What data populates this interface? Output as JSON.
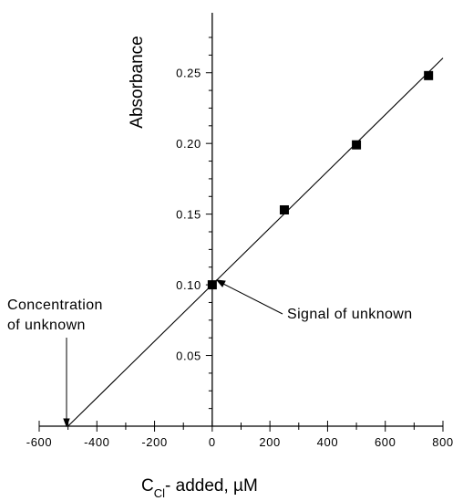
{
  "chart_data": {
    "type": "scatter",
    "x_ticks": [
      -600,
      -400,
      -200,
      0,
      200,
      400,
      600,
      800
    ],
    "y_ticks": [
      0.05,
      0.1,
      0.15,
      0.2,
      0.25
    ],
    "xlim": [
      -600,
      800
    ],
    "ylim": [
      0,
      0.275
    ],
    "series": [
      {
        "values_x": [
          0,
          250,
          500,
          750
        ],
        "values_y": [
          0.1,
          0.153,
          0.199,
          0.248
        ],
        "marker": "square"
      }
    ],
    "fit_line": {
      "x": [
        -500,
        800
      ],
      "y": [
        0.0,
        0.2604
      ]
    },
    "ylabel": "Absorbance",
    "xlabel_main": "C",
    "xlabel_sub": "Cl",
    "xlabel_rest": "- added, µM",
    "annotations": {
      "concentration_line1": "Concentration",
      "concentration_line2": "of unknown",
      "signal": "Signal of unknown"
    },
    "colors": {
      "line": "#000000",
      "marker": "#000000"
    },
    "grid": false,
    "legend": "none"
  }
}
